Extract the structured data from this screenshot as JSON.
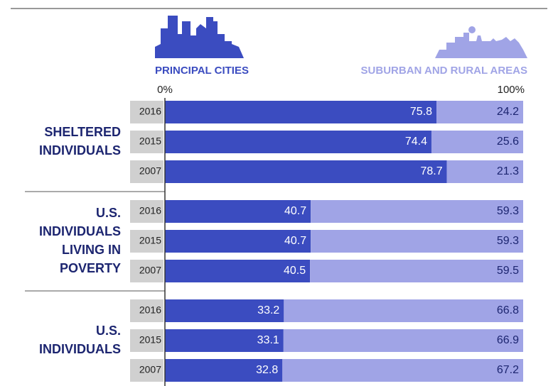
{
  "chart_data": {
    "type": "bar",
    "stacked": true,
    "orientation": "horizontal",
    "xlim": [
      0,
      100
    ],
    "xticks": [
      {
        "value": 0,
        "label": "0%"
      },
      {
        "value": 100,
        "label": "100%"
      }
    ],
    "groups": [
      {
        "name": [
          "SHELTERED",
          "INDIVIDUALS"
        ],
        "categories": [
          "2016",
          "2015",
          "2007"
        ]
      },
      {
        "name": [
          "U.S.",
          "INDIVIDUALS",
          "LIVING IN",
          "POVERTY"
        ],
        "categories": [
          "2016",
          "2015",
          "2007"
        ]
      },
      {
        "name": [
          "U.S.",
          "INDIVIDUALS"
        ],
        "categories": [
          "2016",
          "2015",
          "2007"
        ]
      }
    ],
    "series": [
      {
        "name": "PRINCIPAL CITIES",
        "color": "#3b4cc0",
        "values": [
          75.8,
          74.4,
          78.7,
          40.7,
          40.7,
          40.5,
          33.2,
          33.1,
          32.8
        ]
      },
      {
        "name": "SUBURBAN AND RURAL AREAS",
        "color": "#a0a4e6",
        "values": [
          24.2,
          25.6,
          21.3,
          59.3,
          59.3,
          59.5,
          66.8,
          66.9,
          67.2
        ]
      }
    ]
  }
}
